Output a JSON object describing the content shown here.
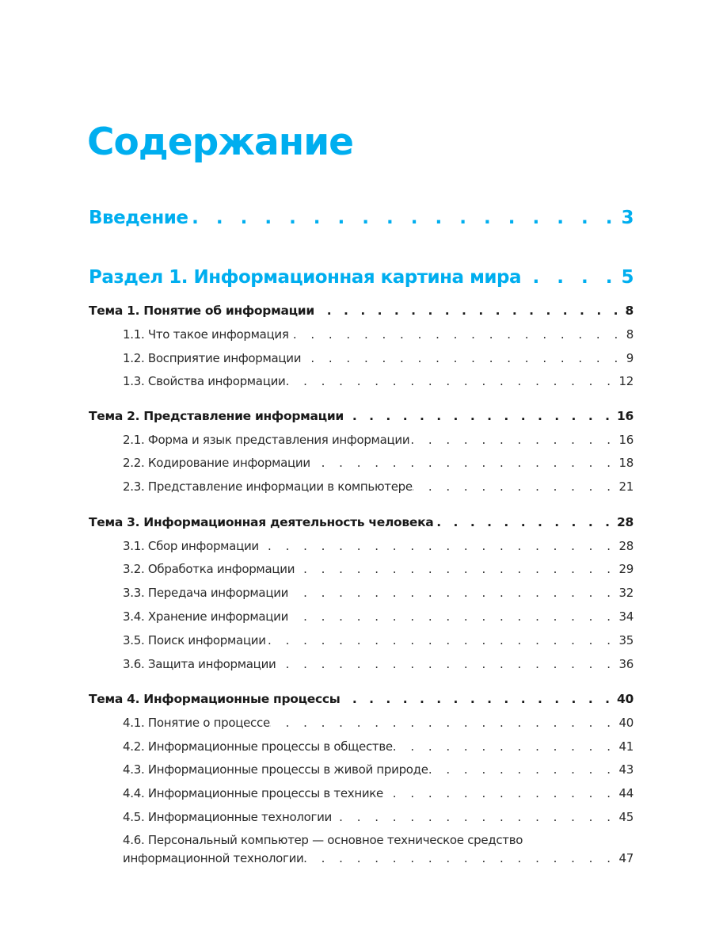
{
  "title": "Содержание",
  "accent_color": "#00aeef",
  "entries": [
    {
      "type": "section",
      "label": "Введение",
      "page": "3"
    },
    {
      "type": "section",
      "label": "Раздел 1. Информационная картина мира",
      "page": "5"
    },
    {
      "type": "theme",
      "label": "Тема 1. Понятие об информации",
      "page": "8"
    },
    {
      "type": "entry",
      "label": "1.1. Что такое информация",
      "page": "8"
    },
    {
      "type": "entry",
      "label": "1.2. Восприятие информации",
      "page": "9"
    },
    {
      "type": "entry",
      "label": "1.3. Свойства информации",
      "page": "12"
    },
    {
      "type": "theme",
      "label": "Тема 2. Представление информации",
      "page": "16"
    },
    {
      "type": "entry",
      "label": "2.1. Форма и язык представления информации",
      "page": "16"
    },
    {
      "type": "entry",
      "label": "2.2. Кодирование информации",
      "page": "18"
    },
    {
      "type": "entry",
      "label": "2.3. Представление информации в компьютере",
      "page": "21"
    },
    {
      "type": "theme",
      "label": "Тема 3. Информационная деятельность человека",
      "page": "28"
    },
    {
      "type": "entry",
      "label": "3.1. Сбор информации",
      "page": "28"
    },
    {
      "type": "entry",
      "label": "3.2. Обработка информации",
      "page": "29"
    },
    {
      "type": "entry",
      "label": "3.3. Передача информации",
      "page": "32"
    },
    {
      "type": "entry",
      "label": "3.4. Хранение информации",
      "page": "34"
    },
    {
      "type": "entry",
      "label": "3.5. Поиск информации",
      "page": "35"
    },
    {
      "type": "entry",
      "label": "3.6. Защита информации",
      "page": "36"
    },
    {
      "type": "theme",
      "label": "Тема 4. Информационные процессы",
      "page": "40"
    },
    {
      "type": "entry",
      "label": "4.1. Понятие о процессе",
      "page": "40"
    },
    {
      "type": "entry",
      "label": "4.2. Информационные процессы в обществе",
      "page": "41"
    },
    {
      "type": "entry",
      "label": "4.3. Информационные процессы в живой природе",
      "page": "43"
    },
    {
      "type": "entry",
      "label": "4.4. Информационные процессы в технике",
      "page": "44"
    },
    {
      "type": "entry",
      "label": "4.5. Информационные технологии",
      "page": "45"
    },
    {
      "type": "entry2",
      "label": "4.6. Персональный компьютер — основное техническое средство",
      "label2": "информационной технологии",
      "page": "47"
    }
  ]
}
